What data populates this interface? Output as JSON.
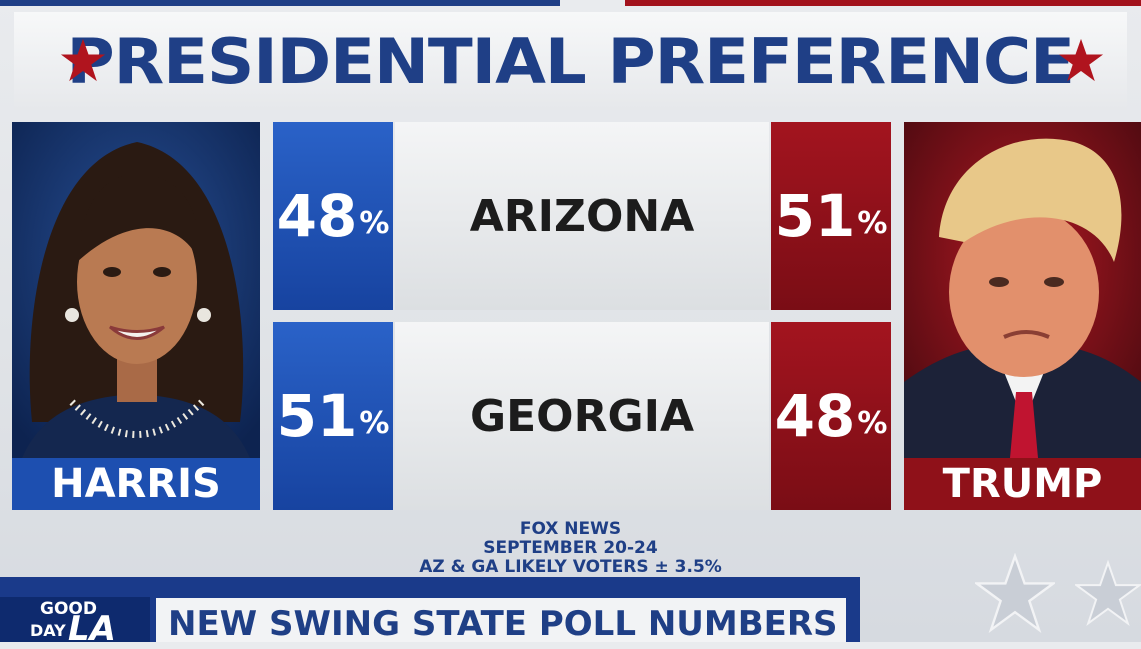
{
  "title": "PRESIDENTIAL PREFERENCE",
  "candidates": {
    "left": {
      "name": "HARRIS",
      "color": "#1d4fb0"
    },
    "right": {
      "name": "TRUMP",
      "color": "#8f1119"
    }
  },
  "rows": [
    {
      "state": "ARIZONA",
      "left_value": "48",
      "right_value": "51"
    },
    {
      "state": "GEORGIA",
      "left_value": "51",
      "right_value": "48"
    }
  ],
  "percent_sign": "%",
  "source": {
    "line1": "FOX NEWS",
    "line2": "SEPTEMBER 20-24",
    "line3": "AZ & GA LIKELY VOTERS ± 3.5%"
  },
  "lower_third": {
    "logo_line1": "GOOD",
    "logo_line2": "DAY",
    "logo_line3": "LA",
    "headline": "NEW SWING STATE POLL NUMBERS"
  },
  "colors": {
    "title_blue": "#1f3f86",
    "star_red": "#b0141e",
    "blue_box": "#1d4fb0",
    "red_box": "#8f1119"
  }
}
